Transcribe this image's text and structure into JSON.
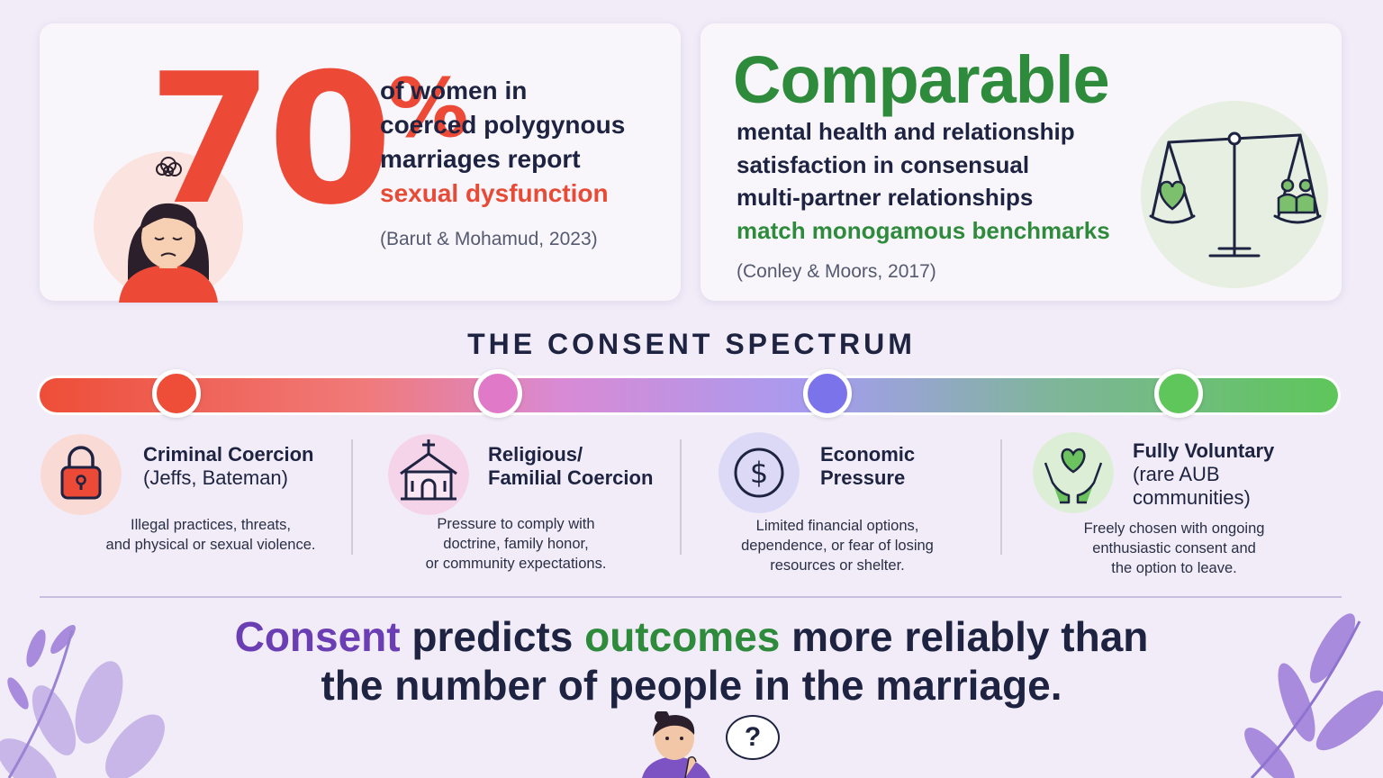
{
  "colors": {
    "red": "#e74a35",
    "green": "#2e8b3c",
    "purple": "#6b3fb3",
    "navy": "#1d2340"
  },
  "left_card": {
    "big_number": "70",
    "percent_sign": "%",
    "lines": [
      "of women in",
      "coerced polygynous",
      "marriages report"
    ],
    "highlight": "sexual dysfunction",
    "citation": "(Barut & Mohamud, 2023)"
  },
  "right_card": {
    "headline": "Comparable",
    "lines": [
      "mental health and relationship",
      "satisfaction in consensual",
      "multi-partner relationships"
    ],
    "highlight": "match monogamous benchmarks",
    "citation": "(Conley & Moors, 2017)"
  },
  "spectrum": {
    "title": "THE CONSENT SPECTRUM",
    "stages": [
      {
        "title_line1": "Criminal Coercion",
        "title_line2": "(Jeffs, Bateman)",
        "desc_line1": "Illegal practices, threats,",
        "desc_line2": "and physical or sexual violence.",
        "icon": "lock-icon",
        "color": "#ee4e38"
      },
      {
        "title_line1": "Religious/",
        "title_line2": "Familial Coercion",
        "desc_line1": "Pressure to comply with",
        "desc_line2": "doctrine, family honor,",
        "desc_line3": "or community expectations.",
        "icon": "church-icon",
        "color": "#e07ac8"
      },
      {
        "title_line1": "Economic",
        "title_line2": "Pressure",
        "desc_line1": "Limited financial options,",
        "desc_line2": "dependence, or fear of losing",
        "desc_line3": "resources or shelter.",
        "icon": "dollar-icon",
        "color": "#7b73ea"
      },
      {
        "title_line1": "Fully Voluntary",
        "title_line2": "(rare AUB",
        "title_line3": "communities)",
        "desc_line1": "Freely chosen with ongoing",
        "desc_line2": "enthusiastic consent and",
        "desc_line3": "the option to leave.",
        "icon": "heart-hands-icon",
        "color": "#5ec65a"
      }
    ]
  },
  "bottom": {
    "word1": "Consent",
    "part1": " predicts ",
    "word2": "outcomes",
    "part2": " more reliably than",
    "line2": "the number of people in the marriage.",
    "bubble": "?"
  }
}
